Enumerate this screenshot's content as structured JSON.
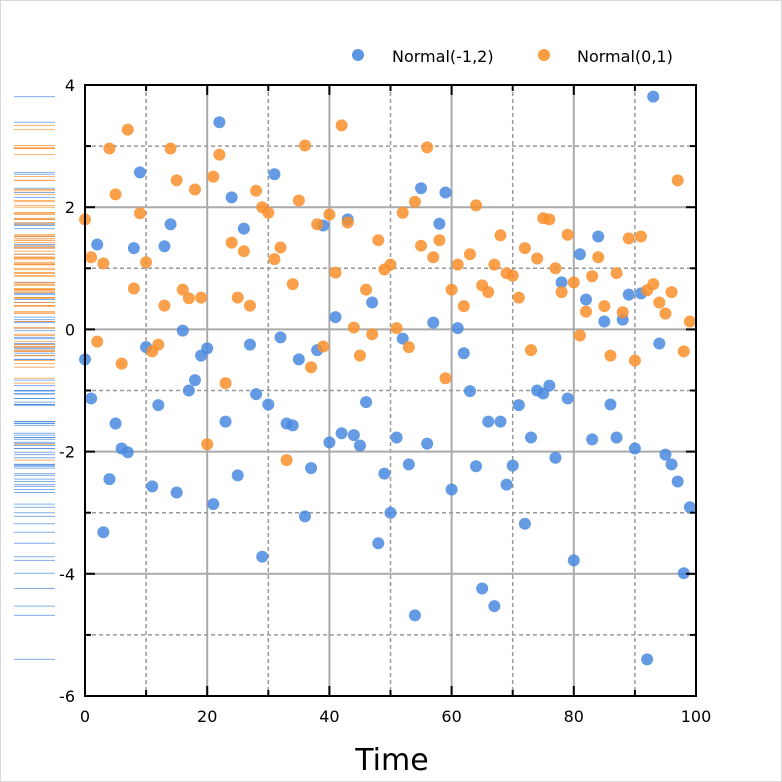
{
  "chart_data": {
    "type": "scatter",
    "title": "",
    "xlabel": "Time",
    "ylabel": "",
    "xlim": [
      0,
      100
    ],
    "ylim": [
      -6,
      4
    ],
    "xticks": [
      "0",
      "20",
      "40",
      "60",
      "80",
      "100"
    ],
    "yticks": [
      "-6",
      "-4",
      "-2",
      "0",
      "2",
      "4"
    ],
    "grid": true,
    "legend_position": "top",
    "rug_plot": "left",
    "series": [
      {
        "name": "Normal(-1,2)",
        "color": "#4a8ae0",
        "y": [
          -0.49,
          -1.13,
          1.39,
          -3.32,
          -2.45,
          -1.54,
          -1.95,
          -2.01,
          1.33,
          2.57,
          -0.29,
          -2.57,
          -1.24,
          1.36,
          1.72,
          -2.67,
          -0.02,
          -1.0,
          -0.83,
          -0.43,
          -0.31,
          -2.86,
          3.39,
          -1.51,
          2.16,
          -2.39,
          1.65,
          -0.25,
          -1.06,
          -3.72,
          -1.23,
          2.54,
          -0.13,
          -1.54,
          -1.57,
          -0.49,
          -3.06,
          -2.27,
          -0.34,
          1.7,
          -1.85,
          0.2,
          -1.7,
          1.8,
          -1.73,
          -1.9,
          -1.19,
          0.44,
          -3.5,
          -2.36,
          -3.0,
          -1.77,
          -0.15,
          -2.21,
          -4.68,
          2.31,
          -1.87,
          0.11,
          1.73,
          2.24,
          -2.62,
          0.02,
          -0.39,
          -1.01,
          -2.24,
          -4.24,
          -1.51,
          -4.53,
          -1.51,
          -2.54,
          -2.23,
          -1.24,
          -3.18,
          -1.77,
          -1.0,
          -1.05,
          -0.92,
          -2.1,
          0.77,
          -1.13,
          -3.78,
          1.23,
          0.49,
          -1.8,
          1.52,
          0.13,
          -1.23,
          -1.77,
          0.16,
          0.57,
          -1.95,
          0.59,
          -5.4,
          3.81,
          -0.23,
          -2.05,
          -2.21,
          -2.49,
          -3.99,
          -2.91
        ]
      },
      {
        "name": "Normal(0,1)",
        "color": "#f98f2c",
        "y": [
          1.8,
          1.18,
          -0.2,
          1.08,
          2.96,
          2.21,
          -0.56,
          3.27,
          0.67,
          1.9,
          1.1,
          -0.36,
          -0.25,
          0.39,
          2.96,
          2.44,
          0.65,
          0.51,
          2.29,
          0.52,
          -1.88,
          2.5,
          2.86,
          -0.88,
          1.42,
          0.52,
          1.28,
          0.39,
          2.27,
          2.0,
          1.91,
          1.15,
          1.34,
          -2.14,
          0.74,
          2.11,
          3.01,
          -0.62,
          1.72,
          -0.28,
          1.88,
          0.93,
          3.34,
          1.75,
          0.03,
          -0.43,
          0.65,
          -0.08,
          1.46,
          0.98,
          1.06,
          0.02,
          1.91,
          -0.29,
          2.09,
          1.37,
          2.98,
          1.18,
          1.46,
          -0.8,
          0.65,
          1.06,
          0.38,
          1.23,
          2.03,
          0.72,
          0.61,
          1.06,
          1.54,
          0.92,
          0.88,
          0.52,
          1.33,
          -0.34,
          1.16,
          1.82,
          1.8,
          1.0,
          0.61,
          1.55,
          0.77,
          -0.1,
          0.29,
          0.87,
          1.18,
          0.38,
          -0.43,
          0.92,
          0.28,
          1.49,
          -0.51,
          1.52,
          0.64,
          0.74,
          0.44,
          0.26,
          0.61,
          2.44,
          -0.36,
          0.13
        ]
      }
    ]
  }
}
